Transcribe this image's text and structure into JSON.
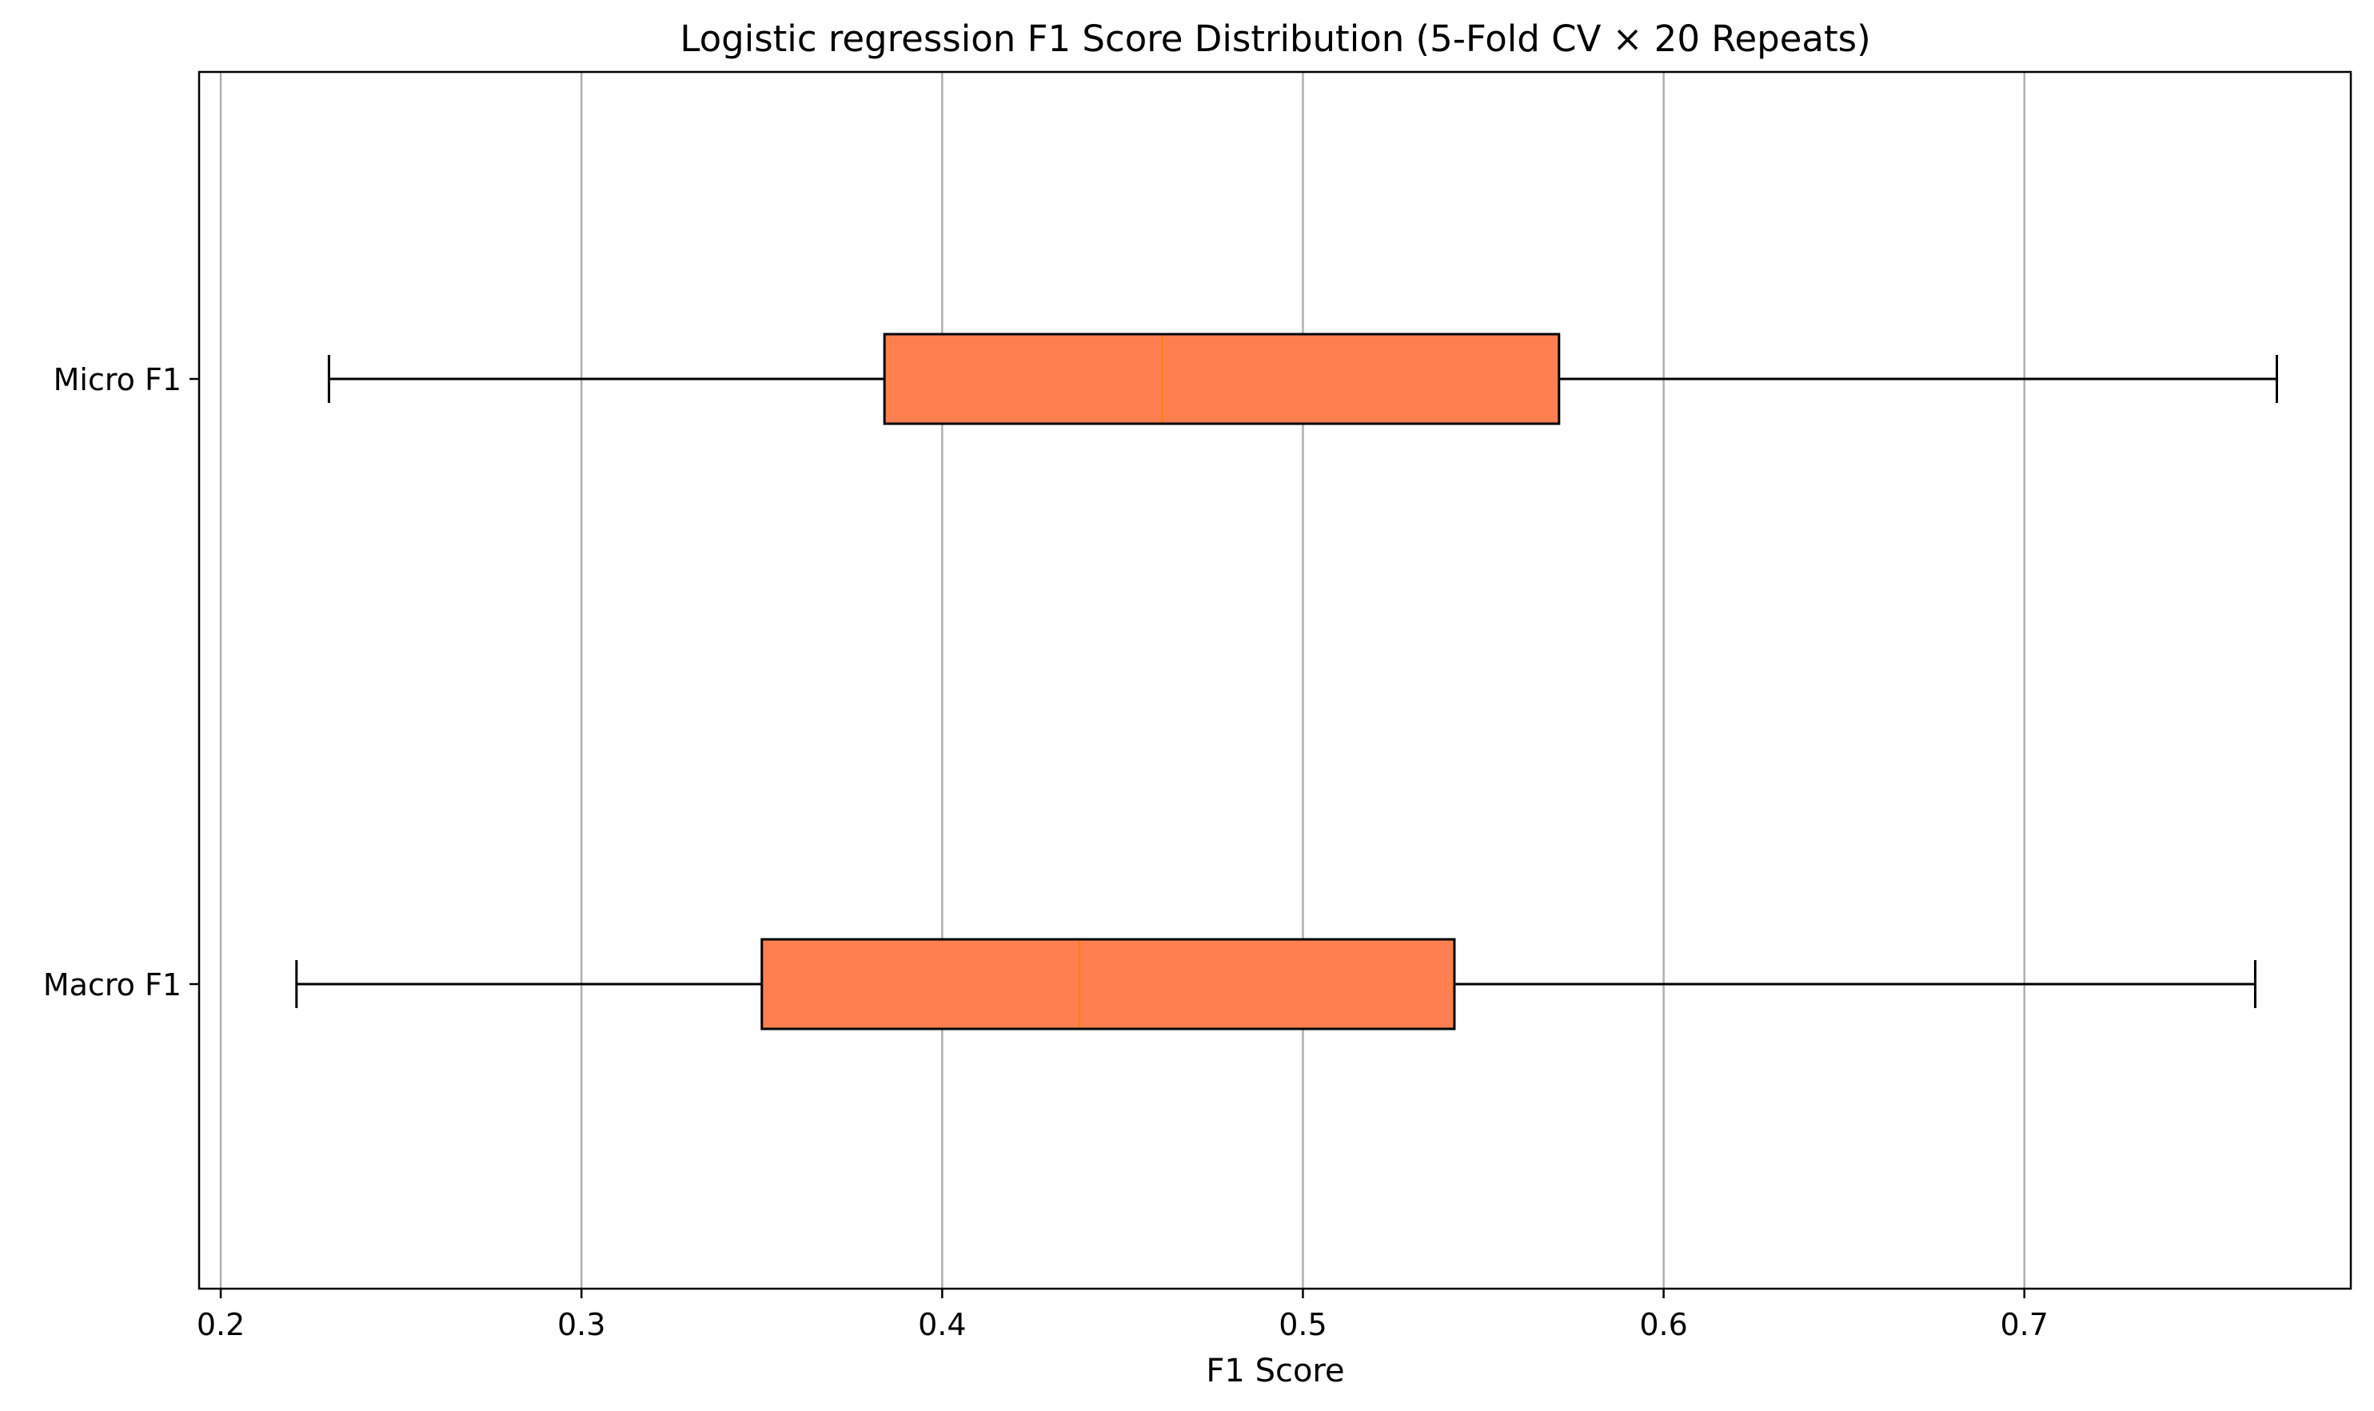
{
  "chart_data": {
    "type": "boxplot",
    "orientation": "horizontal",
    "title": "Logistic regression F1 Score Distribution (5-Fold CV × 20 Repeats)",
    "xlabel": "F1 Score",
    "ylabel": "",
    "xlim": [
      0.194,
      0.7905
    ],
    "xticks": [
      0.2,
      0.3,
      0.4,
      0.5,
      0.6,
      0.7
    ],
    "xtick_labels": [
      "0.2",
      "0.3",
      "0.4",
      "0.5",
      "0.6",
      "0.7"
    ],
    "grid": "x-major",
    "box_color": "#FF7F50",
    "median_color": "#FF7F0E",
    "series": [
      {
        "name": "Micro F1",
        "whisker_low": 0.23,
        "q1": 0.384,
        "median": 0.461,
        "q3": 0.571,
        "whisker_high": 0.77
      },
      {
        "name": "Macro F1",
        "whisker_low": 0.221,
        "q1": 0.35,
        "median": 0.438,
        "q3": 0.542,
        "whisker_high": 0.764
      }
    ]
  }
}
